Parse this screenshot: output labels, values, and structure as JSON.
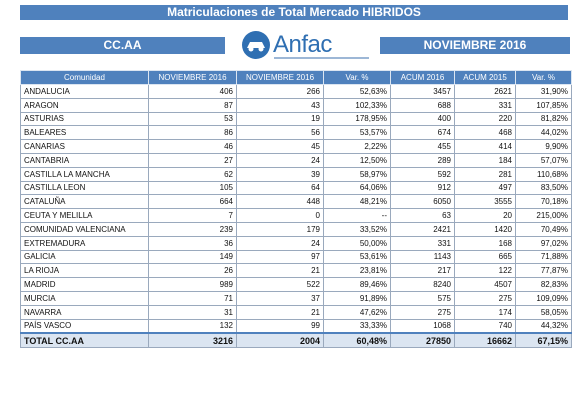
{
  "header": {
    "title": "Matriculaciones de Total Mercado HIBRIDOS",
    "region_label": "CC.AA",
    "period_label": "NOVIEMBRE 2016",
    "logo_text": "Anfac"
  },
  "table": {
    "columns": [
      "Comunidad",
      "NOVIEMBRE 2016",
      "NOVIEMBRE 2016",
      "Var. %",
      "ACUM 2016",
      "ACUM 2015",
      "Var. %"
    ],
    "rows": [
      [
        "ANDALUCIA",
        "406",
        "266",
        "52,63%",
        "3457",
        "2621",
        "31,90%"
      ],
      [
        "ARAGON",
        "87",
        "43",
        "102,33%",
        "688",
        "331",
        "107,85%"
      ],
      [
        "ASTURIAS",
        "53",
        "19",
        "178,95%",
        "400",
        "220",
        "81,82%"
      ],
      [
        "BALEARES",
        "86",
        "56",
        "53,57%",
        "674",
        "468",
        "44,02%"
      ],
      [
        "CANARIAS",
        "46",
        "45",
        "2,22%",
        "455",
        "414",
        "9,90%"
      ],
      [
        "CANTABRIA",
        "27",
        "24",
        "12,50%",
        "289",
        "184",
        "57,07%"
      ],
      [
        "CASTILLA LA MANCHA",
        "62",
        "39",
        "58,97%",
        "592",
        "281",
        "110,68%"
      ],
      [
        "CASTILLA LEON",
        "105",
        "64",
        "64,06%",
        "912",
        "497",
        "83,50%"
      ],
      [
        "CATALUÑA",
        "664",
        "448",
        "48,21%",
        "6050",
        "3555",
        "70,18%"
      ],
      [
        "CEUTA Y MELILLA",
        "7",
        "0",
        "--",
        "63",
        "20",
        "215,00%"
      ],
      [
        "COMUNIDAD VALENCIANA",
        "239",
        "179",
        "33,52%",
        "2421",
        "1420",
        "70,49%"
      ],
      [
        "EXTREMADURA",
        "36",
        "24",
        "50,00%",
        "331",
        "168",
        "97,02%"
      ],
      [
        "GALICIA",
        "149",
        "97",
        "53,61%",
        "1143",
        "665",
        "71,88%"
      ],
      [
        "LA RIOJA",
        "26",
        "21",
        "23,81%",
        "217",
        "122",
        "77,87%"
      ],
      [
        "MADRID",
        "989",
        "522",
        "89,46%",
        "8240",
        "4507",
        "82,83%"
      ],
      [
        "MURCIA",
        "71",
        "37",
        "91,89%",
        "575",
        "275",
        "109,09%"
      ],
      [
        "NAVARRA",
        "31",
        "21",
        "47,62%",
        "275",
        "174",
        "58,05%"
      ],
      [
        "PAÍS VASCO",
        "132",
        "99",
        "33,33%",
        "1068",
        "740",
        "44,32%"
      ]
    ],
    "total": [
      "TOTAL CC.AA",
      "3216",
      "2004",
      "60,48%",
      "27850",
      "16662",
      "67,15%"
    ]
  }
}
